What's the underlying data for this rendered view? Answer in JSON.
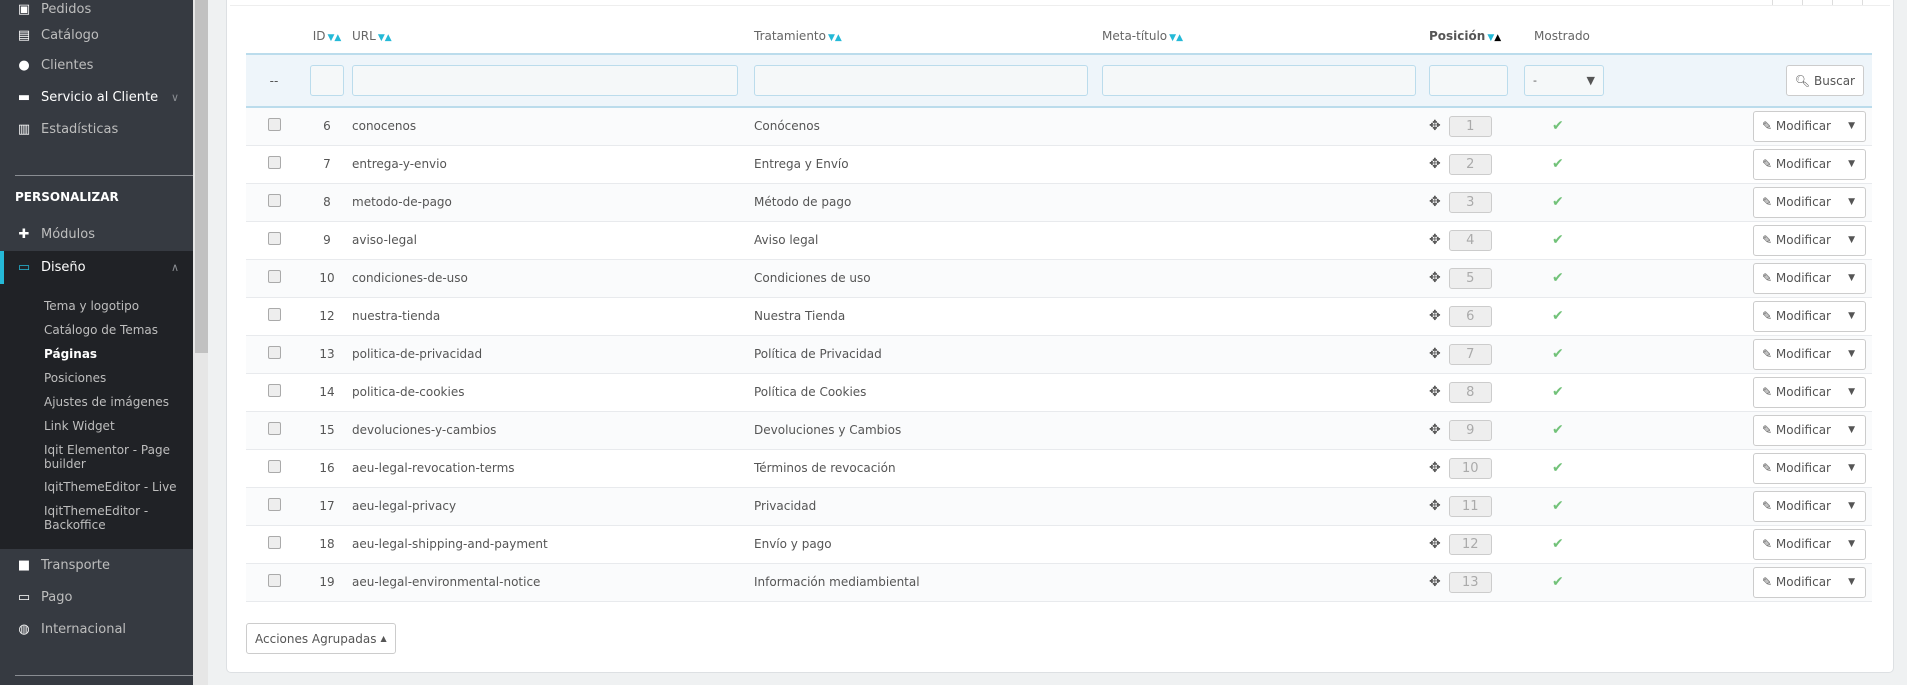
{
  "sidebar": {
    "items_top": [
      {
        "label": "Pedidos",
        "icon": "inbox-icon"
      },
      {
        "label": "Catálogo",
        "icon": "store-icon"
      },
      {
        "label": "Clientes",
        "icon": "user-circle-icon"
      },
      {
        "label": "Servicio al Cliente",
        "icon": "chat-icon"
      },
      {
        "label": "Estadísticas",
        "icon": "bar-chart-icon"
      }
    ],
    "section": "PERSONALIZAR",
    "modulos": "Módulos",
    "diseno": "Diseño",
    "submenu": [
      "Tema y logotipo",
      "Catálogo de Temas",
      "Páginas",
      "Posiciones",
      "Ajustes de imágenes",
      "Link Widget",
      "Iqit Elementor - Page builder",
      "IqitThemeEditor - Live",
      "IqitThemeEditor - Backoffice"
    ],
    "active_sub": "Páginas",
    "items_bottom": [
      {
        "label": "Transporte",
        "icon": "truck-icon"
      },
      {
        "label": "Pago",
        "icon": "credit-card-icon"
      },
      {
        "label": "Internacional",
        "icon": "globe-icon"
      }
    ],
    "accent": "#25b9d7"
  },
  "table": {
    "headers": {
      "id": "ID",
      "url": "URL",
      "tratamiento": "Tratamiento",
      "meta": "Meta-título",
      "posicion": "Posición",
      "mostrado": "Mostrado"
    },
    "filter": {
      "bulk": "--",
      "mostrado_select": "-",
      "search": "Buscar"
    },
    "rows": [
      {
        "id": "6",
        "url": "conocenos",
        "title": "Conócenos",
        "pos": "1"
      },
      {
        "id": "7",
        "url": "entrega-y-envio",
        "title": "Entrega y Envío",
        "pos": "2"
      },
      {
        "id": "8",
        "url": "metodo-de-pago",
        "title": "Método de pago",
        "pos": "3"
      },
      {
        "id": "9",
        "url": "aviso-legal",
        "title": "Aviso legal",
        "pos": "4"
      },
      {
        "id": "10",
        "url": "condiciones-de-uso",
        "title": "Condiciones de uso",
        "pos": "5"
      },
      {
        "id": "12",
        "url": "nuestra-tienda",
        "title": "Nuestra Tienda",
        "pos": "6"
      },
      {
        "id": "13",
        "url": "politica-de-privacidad",
        "title": "Política de Privacidad",
        "pos": "7"
      },
      {
        "id": "14",
        "url": "politica-de-cookies",
        "title": "Política de Cookies",
        "pos": "8"
      },
      {
        "id": "15",
        "url": "devoluciones-y-cambios",
        "title": "Devoluciones y Cambios",
        "pos": "9"
      },
      {
        "id": "16",
        "url": "aeu-legal-revocation-terms",
        "title": "Términos de revocación",
        "pos": "10"
      },
      {
        "id": "17",
        "url": "aeu-legal-privacy",
        "title": "Privacidad",
        "pos": "11"
      },
      {
        "id": "18",
        "url": "aeu-legal-shipping-and-payment",
        "title": "Envío y pago",
        "pos": "12"
      },
      {
        "id": "19",
        "url": "aeu-legal-environmental-notice",
        "title": "Información mediambiental",
        "pos": "13"
      }
    ],
    "edit_label": "Modificar",
    "shown_color": "#72c279"
  },
  "bulk_actions": "Acciones Agrupadas"
}
